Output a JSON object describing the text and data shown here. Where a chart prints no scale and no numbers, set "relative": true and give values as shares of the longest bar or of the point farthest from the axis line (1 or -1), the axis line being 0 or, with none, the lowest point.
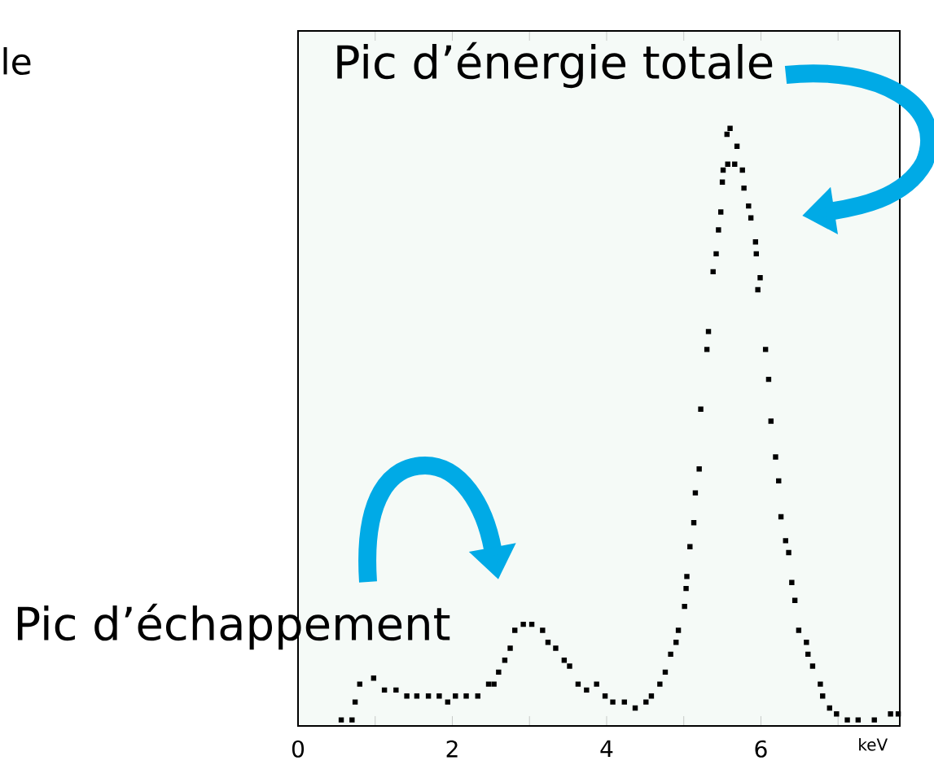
{
  "chart_data": {
    "type": "scatter",
    "relative": true,
    "marker": "square",
    "xlabel": "keV",
    "xlim": [
      0,
      7.8
    ],
    "xticks": [
      0,
      {
        "value": 1,
        "label": null
      },
      2,
      {
        "value": 3,
        "label": null
      },
      4,
      {
        "value": 5,
        "label": null
      },
      6,
      {
        "value": 7,
        "label": null
      }
    ],
    "annotations": [
      "Pic d’énergie totale",
      "Pic d’échappement",
      "le"
    ],
    "series": [
      {
        "color": "#000000",
        "x": [
          0.56,
          0.7,
          0.74,
          0.8,
          0.98,
          1.12,
          1.27,
          1.41,
          1.54,
          1.69,
          1.83,
          1.94,
          2.04,
          2.18,
          2.33,
          2.47,
          2.54,
          2.6,
          2.68,
          2.75,
          2.81,
          2.92,
          3.03,
          3.17,
          3.24,
          3.34,
          3.45,
          3.52,
          3.63,
          3.74,
          3.87,
          3.98,
          4.08,
          4.23,
          4.37,
          4.51,
          4.58,
          4.69,
          4.76,
          4.83,
          4.9,
          4.93,
          5.01,
          5.03,
          5.04,
          5.08,
          5.13,
          5.15,
          5.2,
          5.22,
          5.3,
          5.32,
          5.38,
          5.42,
          5.45,
          5.48,
          5.5,
          5.51,
          5.57,
          5.56,
          5.6,
          5.66,
          5.69,
          5.76,
          5.78,
          5.84,
          5.87,
          5.93,
          5.94,
          5.99,
          5.96,
          6.06,
          6.1,
          6.13,
          6.19,
          6.23,
          6.26,
          6.32,
          6.36,
          6.4,
          6.44,
          6.49,
          6.59,
          6.61,
          6.67,
          6.77,
          6.8,
          6.89,
          6.98,
          7.12,
          7.26,
          7.47,
          7.68,
          7.78
        ],
        "values": [
          0.01,
          0.01,
          0.04,
          0.07,
          0.08,
          0.06,
          0.06,
          0.05,
          0.05,
          0.05,
          0.05,
          0.04,
          0.05,
          0.05,
          0.05,
          0.07,
          0.07,
          0.09,
          0.11,
          0.13,
          0.16,
          0.17,
          0.17,
          0.16,
          0.14,
          0.13,
          0.11,
          0.1,
          0.07,
          0.06,
          0.07,
          0.05,
          0.04,
          0.04,
          0.03,
          0.04,
          0.05,
          0.07,
          0.09,
          0.12,
          0.14,
          0.16,
          0.2,
          0.23,
          0.25,
          0.3,
          0.34,
          0.39,
          0.43,
          0.53,
          0.63,
          0.66,
          0.76,
          0.79,
          0.83,
          0.86,
          0.91,
          0.93,
          0.94,
          0.99,
          1.0,
          0.94,
          0.97,
          0.93,
          0.9,
          0.87,
          0.85,
          0.81,
          0.79,
          0.75,
          0.73,
          0.63,
          0.58,
          0.51,
          0.45,
          0.41,
          0.35,
          0.31,
          0.29,
          0.24,
          0.21,
          0.16,
          0.14,
          0.12,
          0.1,
          0.07,
          0.05,
          0.03,
          0.02,
          0.01,
          0.01,
          0.01,
          0.02,
          0.02
        ]
      }
    ]
  }
}
